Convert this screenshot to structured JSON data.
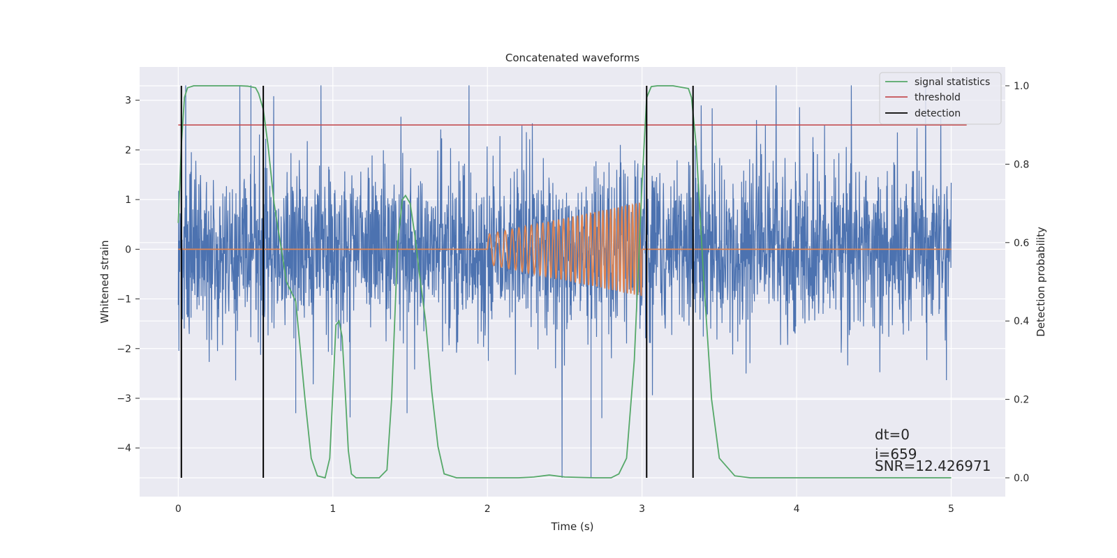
{
  "chart_data": {
    "type": "line",
    "title": "Concatenated waveforms",
    "xlabel": "Time (s)",
    "ylabel": "Whitened strain",
    "y2label": "Detection probability",
    "xlim": [
      -0.25,
      5.35
    ],
    "ylim": [
      -4.98,
      3.67
    ],
    "y2lim": [
      -0.048,
      1.048
    ],
    "xticks": [
      "0",
      "1",
      "2",
      "3",
      "4",
      "5"
    ],
    "yticks": [
      "−4",
      "−3",
      "−2",
      "−1",
      "0",
      "1",
      "2",
      "3"
    ],
    "y2ticks": [
      "0.0",
      "0.2",
      "0.4",
      "0.6",
      "0.8",
      "1.0"
    ],
    "grid": true,
    "legend_position": "top-right",
    "colors": {
      "strain": "#4c72b0",
      "template": "#dd8452",
      "signal_statistics": "#55a868",
      "threshold": "#c44e52",
      "detection": "#000000",
      "plot_bg": "#eaeaf2",
      "grid": "#ffffff"
    },
    "series": [
      {
        "name": "signal statistics",
        "axis": "right",
        "x": [
          0.0,
          0.02,
          0.04,
          0.06,
          0.1,
          0.2,
          0.3,
          0.4,
          0.45,
          0.5,
          0.52,
          0.55,
          0.58,
          0.62,
          0.7,
          0.76,
          0.82,
          0.86,
          0.9,
          0.95,
          0.98,
          1.0,
          1.02,
          1.04,
          1.06,
          1.08,
          1.1,
          1.12,
          1.15,
          1.2,
          1.3,
          1.35,
          1.38,
          1.42,
          1.45,
          1.47,
          1.5,
          1.53,
          1.56,
          1.6,
          1.64,
          1.68,
          1.72,
          1.8,
          2.0,
          2.2,
          2.3,
          2.4,
          2.5,
          2.7,
          2.8,
          2.85,
          2.9,
          2.95,
          3.0,
          3.03,
          3.06,
          3.1,
          3.2,
          3.3,
          3.32,
          3.35,
          3.4,
          3.45,
          3.5,
          3.6,
          3.7,
          4.0,
          4.5,
          5.0
        ],
        "values": [
          0.65,
          0.85,
          0.97,
          0.995,
          1.0,
          1.0,
          1.0,
          1.0,
          0.999,
          0.995,
          0.98,
          0.94,
          0.85,
          0.7,
          0.5,
          0.45,
          0.2,
          0.05,
          0.005,
          0.0,
          0.05,
          0.22,
          0.39,
          0.4,
          0.36,
          0.22,
          0.07,
          0.01,
          0.0,
          0.0,
          0.0,
          0.02,
          0.2,
          0.6,
          0.71,
          0.72,
          0.7,
          0.62,
          0.52,
          0.4,
          0.22,
          0.08,
          0.01,
          0.0,
          0.0,
          0.0,
          0.002,
          0.007,
          0.002,
          0.0,
          0.0,
          0.01,
          0.05,
          0.3,
          0.75,
          0.97,
          0.998,
          1.0,
          1.0,
          0.993,
          0.97,
          0.85,
          0.5,
          0.2,
          0.05,
          0.005,
          0.0,
          0.0,
          0.0,
          0.0
        ]
      },
      {
        "name": "threshold",
        "axis": "right",
        "x": [
          0.0,
          5.1
        ],
        "values": [
          0.9,
          0.9
        ]
      },
      {
        "name": "detection",
        "axis": "right",
        "x": [
          0.02,
          0.55,
          3.03,
          3.33
        ],
        "values": [
          1.0,
          1.0,
          1.0,
          1.0
        ]
      }
    ],
    "strain_trace": {
      "x_range": [
        0.0,
        5.0
      ],
      "typical_range": [
        -1.6,
        1.6
      ],
      "peak_max": 3.3,
      "peak_min": -4.6
    },
    "template_trace": {
      "flat_until": 2.0,
      "chirp_start": 2.0,
      "chirp_end": 3.0,
      "amplitude_start": 0.3,
      "amplitude_end": 0.95,
      "x_range": [
        0.0,
        5.0
      ]
    },
    "annotations": [
      "dt=0",
      "i=659",
      "SNR=12.426971"
    ]
  }
}
